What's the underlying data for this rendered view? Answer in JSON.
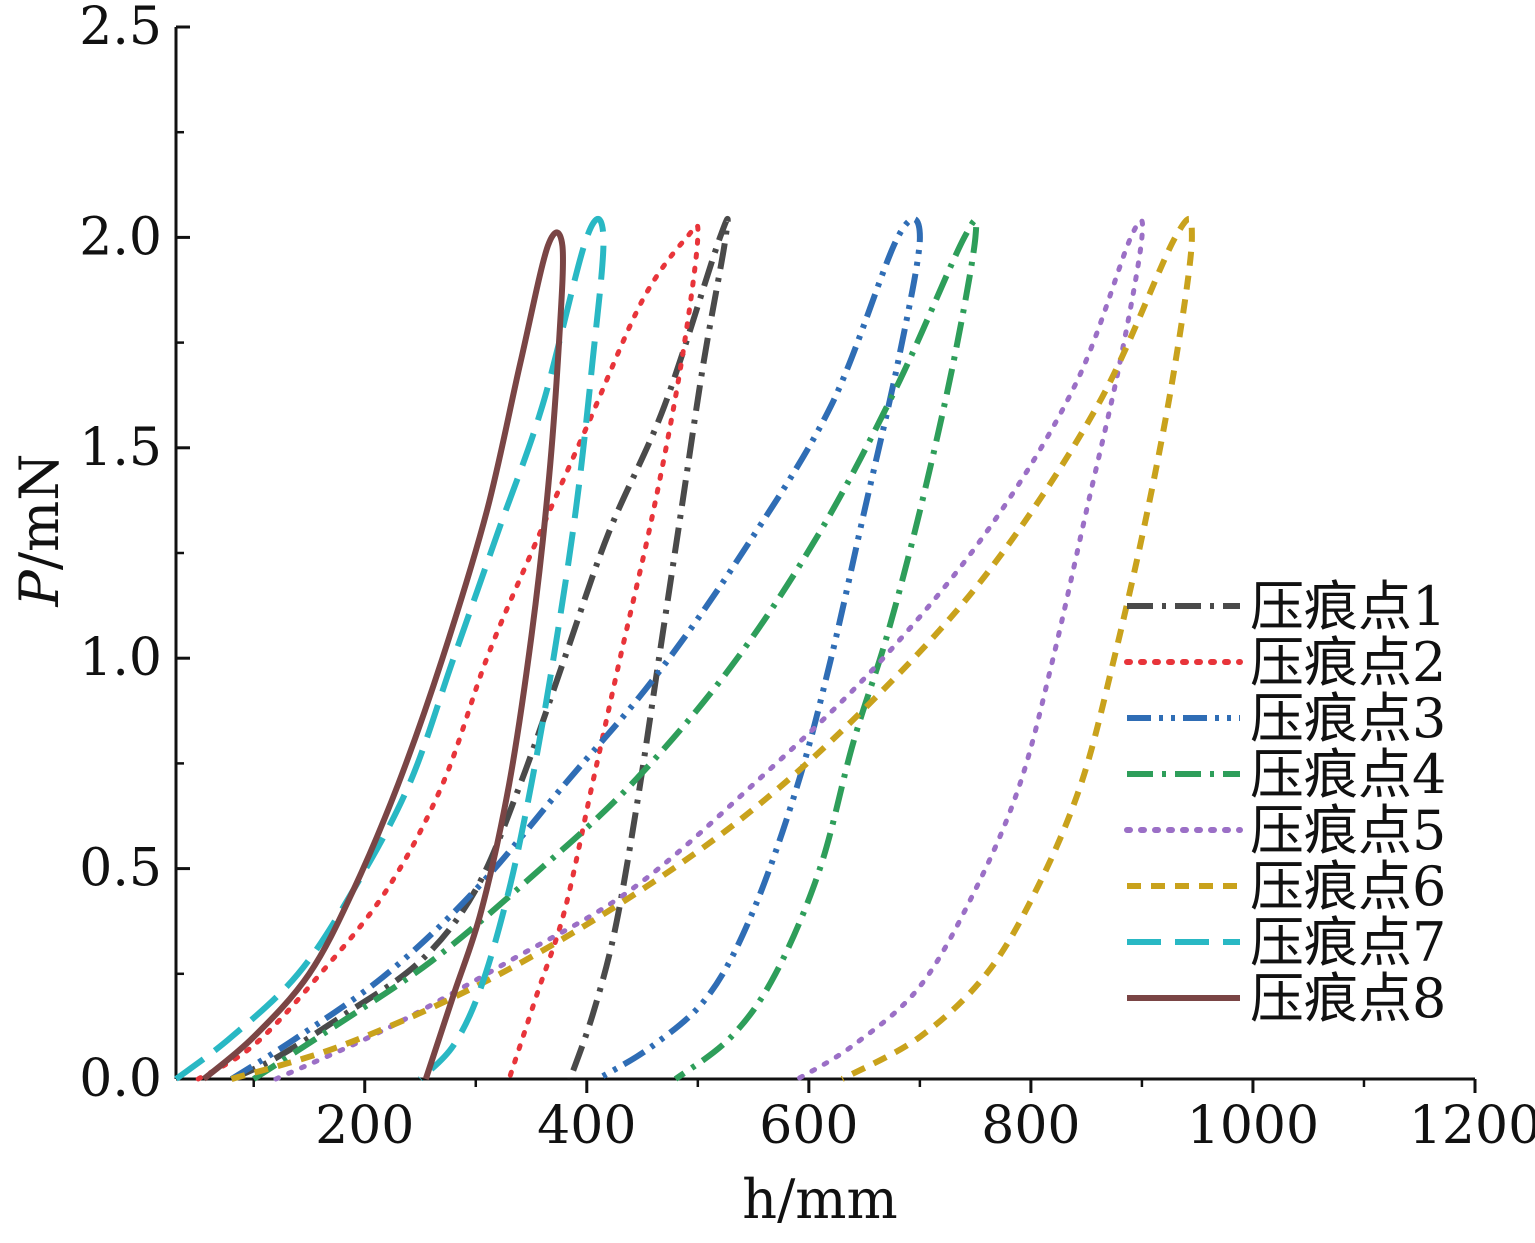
{
  "chart_data": {
    "type": "line",
    "title": "",
    "xlabel": "h/mm",
    "ylabel_italic": "P",
    "ylabel_rest": "/mN",
    "xlim": [
      30,
      1200
    ],
    "ylim": [
      0,
      2.5
    ],
    "xticks": [
      200,
      400,
      600,
      800,
      1000,
      1200
    ],
    "xtick_labels": [
      "200",
      "400",
      "600",
      "800",
      "1000",
      "1200"
    ],
    "yticks": [
      0,
      0.5,
      1.0,
      1.5,
      2.0,
      2.5
    ],
    "ytick_labels": [
      "0.0",
      "0.5",
      "1.0",
      "1.5",
      "2.0",
      "2.5"
    ],
    "legend_position": "bottom-right",
    "grid": false,
    "series": [
      {
        "name": "压痕点1",
        "color": "#4a4a4a",
        "dash": "dashdot",
        "loading": [
          [
            80,
            0
          ],
          [
            120,
            0.05
          ],
          [
            180,
            0.15
          ],
          [
            250,
            0.28
          ],
          [
            300,
            0.45
          ],
          [
            340,
            0.7
          ],
          [
            380,
            1.0
          ],
          [
            420,
            1.3
          ],
          [
            470,
            1.6
          ],
          [
            520,
            2.0
          ]
        ],
        "unloading": [
          [
            525,
            2.0
          ],
          [
            505,
            1.7
          ],
          [
            485,
            1.35
          ],
          [
            465,
            1.0
          ],
          [
            445,
            0.65
          ],
          [
            425,
            0.35
          ],
          [
            405,
            0.15
          ],
          [
            385,
            0
          ]
        ]
      },
      {
        "name": "压痕点2",
        "color": "#e8343a",
        "dash": "dotted",
        "loading": [
          [
            50,
            0
          ],
          [
            100,
            0.08
          ],
          [
            160,
            0.25
          ],
          [
            220,
            0.45
          ],
          [
            270,
            0.7
          ],
          [
            310,
            1.0
          ],
          [
            350,
            1.25
          ],
          [
            400,
            1.55
          ],
          [
            450,
            1.85
          ],
          [
            490,
            2.0
          ]
        ],
        "unloading": [
          [
            500,
            2.0
          ],
          [
            485,
            1.7
          ],
          [
            460,
            1.35
          ],
          [
            430,
            1.0
          ],
          [
            405,
            0.7
          ],
          [
            380,
            0.4
          ],
          [
            355,
            0.2
          ],
          [
            330,
            0
          ]
        ]
      },
      {
        "name": "压痕点3",
        "color": "#2f6db5",
        "dash": "dashdotdot",
        "loading": [
          [
            80,
            0
          ],
          [
            140,
            0.1
          ],
          [
            220,
            0.25
          ],
          [
            300,
            0.45
          ],
          [
            380,
            0.7
          ],
          [
            460,
            0.95
          ],
          [
            540,
            1.25
          ],
          [
            620,
            1.6
          ],
          [
            680,
            2.0
          ]
        ],
        "unloading": [
          [
            700,
            2.0
          ],
          [
            680,
            1.7
          ],
          [
            650,
            1.35
          ],
          [
            620,
            1.0
          ],
          [
            590,
            0.7
          ],
          [
            550,
            0.4
          ],
          [
            510,
            0.2
          ],
          [
            460,
            0.08
          ],
          [
            410,
            0
          ]
        ]
      },
      {
        "name": "压痕点4",
        "color": "#2e9e5a",
        "dash": "dashdot",
        "loading": [
          [
            100,
            0
          ],
          [
            170,
            0.12
          ],
          [
            260,
            0.28
          ],
          [
            350,
            0.48
          ],
          [
            440,
            0.7
          ],
          [
            530,
            0.98
          ],
          [
            610,
            1.3
          ],
          [
            680,
            1.65
          ],
          [
            740,
            2.0
          ]
        ],
        "unloading": [
          [
            750,
            2.0
          ],
          [
            730,
            1.7
          ],
          [
            700,
            1.35
          ],
          [
            670,
            1.05
          ],
          [
            640,
            0.8
          ],
          [
            610,
            0.5
          ],
          [
            570,
            0.25
          ],
          [
            530,
            0.1
          ],
          [
            480,
            0
          ]
        ]
      },
      {
        "name": "压痕点5",
        "color": "#9b6fc6",
        "dash": "dotted",
        "loading": [
          [
            120,
            0
          ],
          [
            220,
            0.12
          ],
          [
            330,
            0.28
          ],
          [
            440,
            0.45
          ],
          [
            550,
            0.7
          ],
          [
            660,
            0.98
          ],
          [
            760,
            1.3
          ],
          [
            840,
            1.65
          ],
          [
            890,
            2.0
          ]
        ],
        "unloading": [
          [
            900,
            2.0
          ],
          [
            880,
            1.7
          ],
          [
            850,
            1.35
          ],
          [
            820,
            1.0
          ],
          [
            790,
            0.7
          ],
          [
            750,
            0.45
          ],
          [
            700,
            0.22
          ],
          [
            640,
            0.08
          ],
          [
            590,
            0
          ]
        ]
      },
      {
        "name": "压痕点6",
        "color": "#c9a21c",
        "dash": "dashed",
        "loading": [
          [
            80,
            0
          ],
          [
            180,
            0.08
          ],
          [
            300,
            0.22
          ],
          [
            420,
            0.4
          ],
          [
            540,
            0.62
          ],
          [
            650,
            0.88
          ],
          [
            760,
            1.2
          ],
          [
            860,
            1.6
          ],
          [
            930,
            2.0
          ]
        ],
        "unloading": [
          [
            945,
            2.0
          ],
          [
            930,
            1.7
          ],
          [
            905,
            1.35
          ],
          [
            875,
            1.0
          ],
          [
            845,
            0.7
          ],
          [
            805,
            0.45
          ],
          [
            760,
            0.25
          ],
          [
            700,
            0.1
          ],
          [
            630,
            0
          ]
        ]
      },
      {
        "name": "压痕点7",
        "color": "#29b8c4",
        "dash": "longdash",
        "loading": [
          [
            30,
            0
          ],
          [
            80,
            0.1
          ],
          [
            140,
            0.25
          ],
          [
            190,
            0.45
          ],
          [
            240,
            0.7
          ],
          [
            280,
            1.0
          ],
          [
            320,
            1.3
          ],
          [
            360,
            1.6
          ],
          [
            400,
            2.0
          ]
        ],
        "unloading": [
          [
            415,
            2.0
          ],
          [
            405,
            1.7
          ],
          [
            390,
            1.35
          ],
          [
            370,
            1.0
          ],
          [
            350,
            0.7
          ],
          [
            330,
            0.45
          ],
          [
            305,
            0.22
          ],
          [
            280,
            0.08
          ],
          [
            250,
            0
          ]
        ]
      },
      {
        "name": "压痕点8",
        "color": "#7a4545",
        "dash": "solid",
        "loading": [
          [
            55,
            0
          ],
          [
            100,
            0.1
          ],
          [
            150,
            0.25
          ],
          [
            190,
            0.45
          ],
          [
            230,
            0.7
          ],
          [
            270,
            1.0
          ],
          [
            310,
            1.35
          ],
          [
            340,
            1.7
          ],
          [
            365,
            1.98
          ]
        ],
        "unloading": [
          [
            378,
            1.98
          ],
          [
            375,
            1.75
          ],
          [
            365,
            1.4
          ],
          [
            350,
            1.05
          ],
          [
            330,
            0.7
          ],
          [
            305,
            0.4
          ],
          [
            280,
            0.2
          ],
          [
            255,
            0
          ]
        ]
      }
    ]
  }
}
